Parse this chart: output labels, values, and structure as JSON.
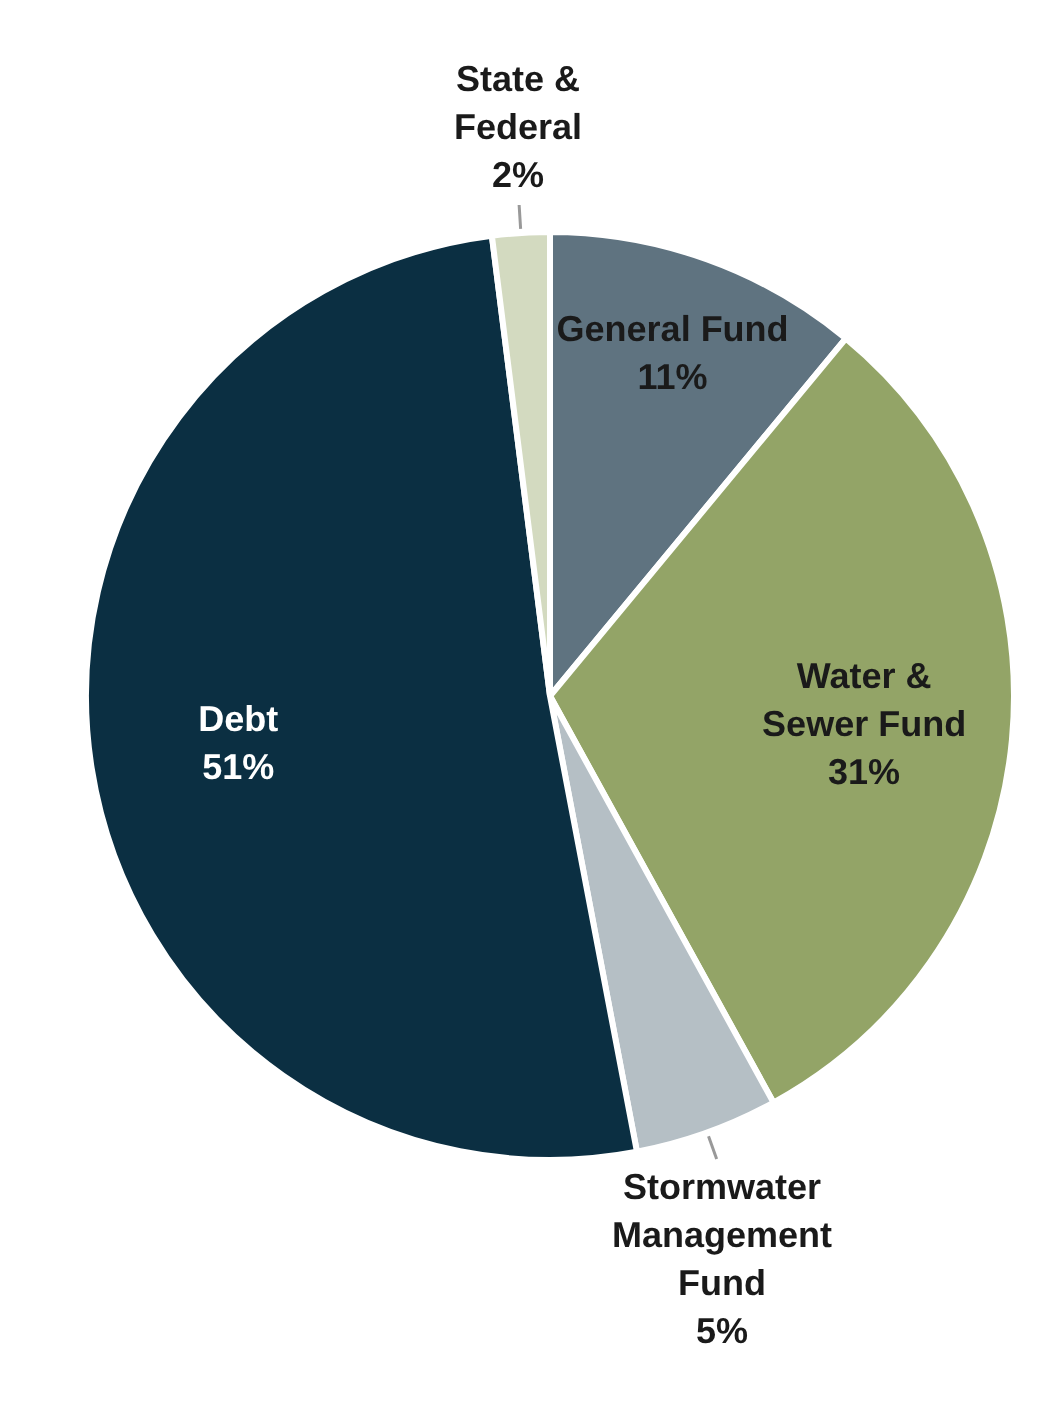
{
  "chart_data": {
    "type": "pie",
    "categories": [
      "General Fund",
      "Water & Sewer Fund",
      "Stormwater Management Fund",
      "Debt",
      "State & Federal"
    ],
    "values": [
      11,
      31,
      5,
      51,
      2
    ],
    "value_labels": [
      "11%",
      "31%",
      "5%",
      "51%",
      "2%"
    ],
    "colors": [
      "#5f7380",
      "#93a467",
      "#b5bfc5",
      "#0b2f42",
      "#d3dac0"
    ]
  }
}
